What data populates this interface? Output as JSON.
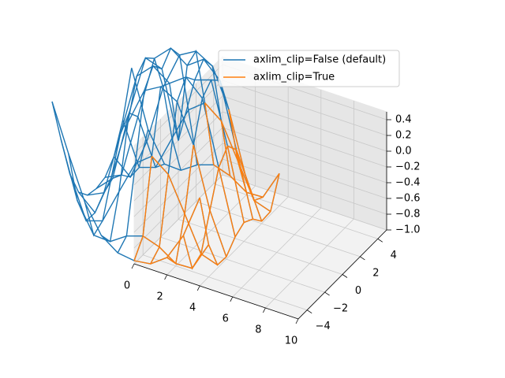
{
  "chart_data": {
    "type": "wireframe3d",
    "x": [
      -5,
      -4,
      -3,
      -2,
      -1,
      0,
      1,
      2,
      3,
      4
    ],
    "y": [
      -5,
      -4,
      -3,
      -2,
      -1,
      0,
      1,
      2,
      3,
      4
    ],
    "z": [
      [
        0.71,
        0.12,
        -0.43,
        -0.78,
        -0.93,
        -0.96,
        -0.93,
        -0.78,
        -0.43,
        0.12
      ],
      [
        0.12,
        -0.59,
        -0.96,
        -0.97,
        -0.83,
        -0.76,
        -0.83,
        -0.97,
        -0.96,
        -0.59
      ],
      [
        -0.43,
        -0.96,
        -0.89,
        -0.45,
        -0.02,
        0.14,
        -0.02,
        -0.45,
        -0.89,
        -0.96
      ],
      [
        -0.78,
        -0.97,
        -0.45,
        0.31,
        0.79,
        0.91,
        0.79,
        0.31,
        -0.45,
        -0.97
      ],
      [
        -0.93,
        -0.83,
        -0.02,
        0.79,
        0.99,
        0.84,
        0.99,
        0.79,
        -0.02,
        -0.83
      ],
      [
        -0.96,
        -0.76,
        0.14,
        0.91,
        0.84,
        0,
        0.84,
        0.91,
        0.14,
        -0.76
      ],
      [
        -0.93,
        -0.83,
        -0.02,
        0.79,
        0.99,
        0.84,
        0.99,
        0.79,
        -0.02,
        -0.83
      ],
      [
        -0.78,
        -0.97,
        -0.45,
        0.31,
        0.79,
        0.91,
        0.79,
        0.31,
        -0.45,
        -0.97
      ],
      [
        -0.43,
        -0.96,
        -0.89,
        -0.45,
        -0.02,
        0.14,
        -0.02,
        -0.45,
        -0.89,
        -0.96
      ],
      [
        0.12,
        -0.59,
        -0.96,
        -0.97,
        -0.83,
        -0.76,
        -0.83,
        -0.97,
        -0.96,
        -0.59
      ]
    ],
    "series": [
      {
        "name": "axlim_clip=False (default)",
        "color": "#1f77b4",
        "clip": false
      },
      {
        "name": "axlim_clip=True",
        "color": "#ff7f0e",
        "clip": true
      }
    ],
    "xlim": [
      0,
      10
    ],
    "xticks": [
      0,
      2,
      4,
      6,
      8,
      10
    ],
    "ylim": [
      -5,
      5
    ],
    "yticks": [
      {
        "value": -4,
        "label": "−4"
      },
      {
        "value": -2,
        "label": "−2"
      },
      0,
      2,
      4
    ],
    "zlim": [
      -1,
      0.5
    ],
    "zticks": [
      {
        "value": -1.0,
        "label": "−1.0"
      },
      {
        "value": -0.8,
        "label": "−0.8"
      },
      {
        "value": -0.6,
        "label": "−0.6"
      },
      {
        "value": -0.4,
        "label": "−0.4"
      },
      {
        "value": -0.2,
        "label": "−0.2"
      },
      {
        "value": 0.0,
        "label": "0.0"
      },
      0.2,
      0.4
    ],
    "grid": true,
    "legend": "upper right"
  }
}
